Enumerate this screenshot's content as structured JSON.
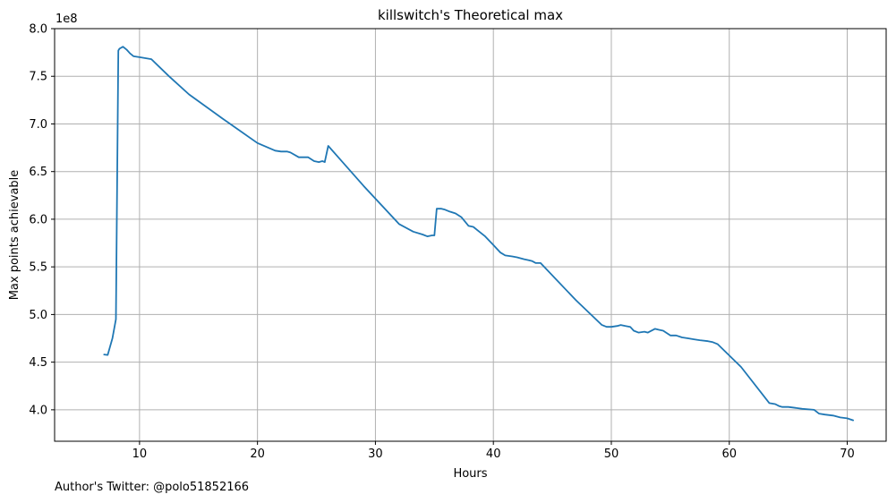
{
  "chart_data": {
    "type": "line",
    "title": "killswitch's Theoretical max",
    "xlabel": "Hours",
    "ylabel": "Max points achievable",
    "y_multiplier_label": "1e8",
    "xlim": [
      2.8,
      73.3
    ],
    "ylim": [
      3.67,
      8.0
    ],
    "x_ticks": [
      10,
      20,
      30,
      40,
      50,
      60,
      70
    ],
    "x_tick_labels": [
      "10",
      "20",
      "30",
      "40",
      "50",
      "60",
      "70"
    ],
    "y_ticks": [
      4.0,
      4.5,
      5.0,
      5.5,
      6.0,
      6.5,
      7.0,
      7.5,
      8.0
    ],
    "y_tick_labels": [
      "4.0",
      "4.5",
      "5.0",
      "5.5",
      "6.0",
      "6.5",
      "7.0",
      "7.5",
      "8.0"
    ],
    "grid": true,
    "line_color": "#1f77b4",
    "grid_color": "#b0b0b0",
    "series": [
      {
        "x": [
          7.0,
          7.3,
          7.7,
          8.0,
          8.2,
          8.3,
          8.6,
          8.9,
          9.2,
          9.5,
          10.0,
          10.5,
          11.0,
          12.5,
          14.2,
          17.0,
          20.0,
          21.5,
          22.0,
          22.5,
          22.8,
          23.5,
          24.3,
          24.8,
          25.2,
          25.5,
          25.7,
          26.0,
          29.0,
          32.0,
          33.2,
          34.0,
          34.4,
          34.8,
          35.0,
          35.2,
          35.6,
          35.9,
          36.3,
          36.8,
          37.3,
          37.9,
          38.3,
          38.8,
          39.3,
          40.0,
          40.6,
          41.0,
          41.6,
          42.0,
          42.6,
          43.0,
          43.3,
          43.6,
          44.0,
          47.0,
          49.2,
          49.6,
          50.0,
          50.5,
          50.8,
          51.2,
          51.6,
          51.9,
          52.3,
          52.8,
          53.1,
          53.7,
          54.0,
          54.4,
          55.0,
          55.5,
          56.0,
          56.5,
          57.0,
          57.5,
          58.2,
          58.6,
          59.0,
          61.0,
          63.4,
          63.9,
          64.2,
          64.5,
          65.0,
          65.6,
          66.2,
          67.2,
          67.6,
          68.1,
          68.8,
          69.4,
          70.0,
          70.5
        ],
        "y": [
          4.58,
          4.575,
          4.75,
          4.95,
          7.77,
          7.79,
          7.81,
          7.78,
          7.74,
          7.71,
          7.7,
          7.69,
          7.68,
          7.5,
          7.31,
          7.06,
          6.8,
          6.72,
          6.71,
          6.71,
          6.7,
          6.65,
          6.65,
          6.61,
          6.6,
          6.61,
          6.6,
          6.77,
          6.35,
          5.95,
          5.87,
          5.84,
          5.82,
          5.83,
          5.83,
          6.11,
          6.11,
          6.1,
          6.08,
          6.06,
          6.02,
          5.93,
          5.92,
          5.87,
          5.82,
          5.73,
          5.65,
          5.62,
          5.61,
          5.6,
          5.58,
          5.57,
          5.56,
          5.54,
          5.54,
          5.15,
          4.89,
          4.87,
          4.87,
          4.88,
          4.89,
          4.88,
          4.87,
          4.83,
          4.81,
          4.82,
          4.81,
          4.85,
          4.84,
          4.83,
          4.78,
          4.78,
          4.76,
          4.75,
          4.74,
          4.73,
          4.72,
          4.71,
          4.69,
          4.45,
          4.07,
          4.06,
          4.04,
          4.03,
          4.03,
          4.02,
          4.01,
          4.0,
          3.96,
          3.95,
          3.94,
          3.92,
          3.91,
          3.89
        ]
      }
    ]
  },
  "footnote": "Author's Twitter: @polo51852166"
}
